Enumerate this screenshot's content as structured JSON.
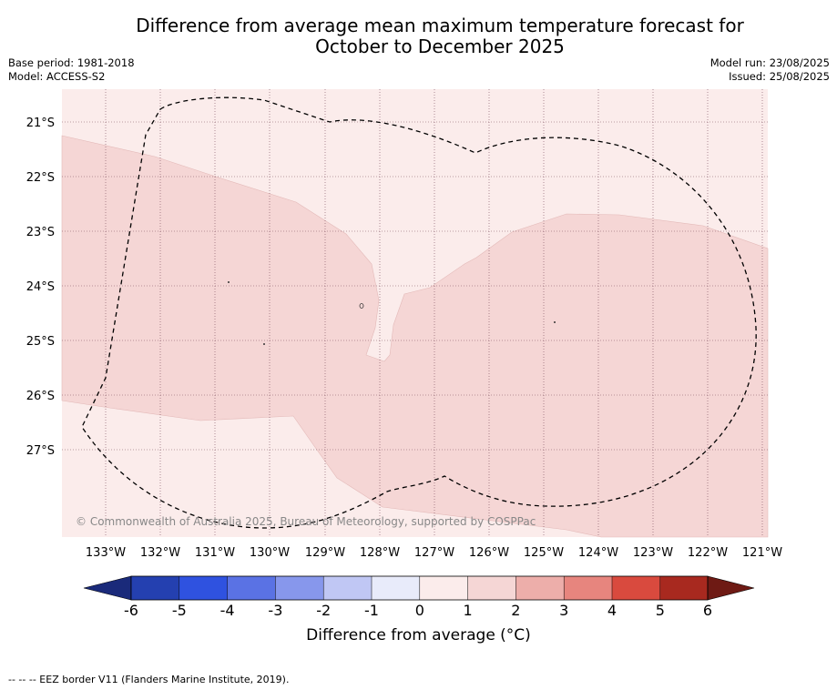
{
  "title": {
    "line1": "Difference from average mean maximum temperature forecast for",
    "line2": "October to December 2025"
  },
  "meta": {
    "base_period": "Base period: 1981-2018",
    "model": "Model: ACCESS-S2",
    "model_run": "Model run: 23/08/2025",
    "issued": "Issued: 25/08/2025"
  },
  "map": {
    "lat_labels": [
      "21°S",
      "22°S",
      "23°S",
      "24°S",
      "25°S",
      "26°S",
      "27°S"
    ],
    "lon_labels": [
      "133°W",
      "132°W",
      "131°W",
      "130°W",
      "129°W",
      "128°W",
      "127°W",
      "126°W",
      "125°W",
      "124°W",
      "123°W",
      "122°W",
      "121°W"
    ],
    "copyright": "© Commonwealth of Australia 2025, Bureau of Meteorology, supported by COSPPac",
    "colors": {
      "band_0_1": "#fbeceb",
      "band_1_2": "#f5d6d5",
      "eez_border": "#000000",
      "gridline": "#7a4a5a"
    }
  },
  "colorbar": {
    "ticks": [
      "-6",
      "-5",
      "-4",
      "-3",
      "-2",
      "-1",
      "0",
      "1",
      "2",
      "3",
      "4",
      "5",
      "6"
    ],
    "label": "Difference from average (°C)",
    "colors": [
      "#1a2a7a",
      "#2440b0",
      "#2f52e0",
      "#5a72e4",
      "#8797ec",
      "#c0c7f4",
      "#e8ebfa",
      "#fbeceb",
      "#f5d6d5",
      "#edaeaa",
      "#e7857e",
      "#d94a3e",
      "#a8291f",
      "#6e1a14"
    ]
  },
  "legend_note": "--  --  -- EEZ border V11 (Flanders Marine Institute, 2019)."
}
